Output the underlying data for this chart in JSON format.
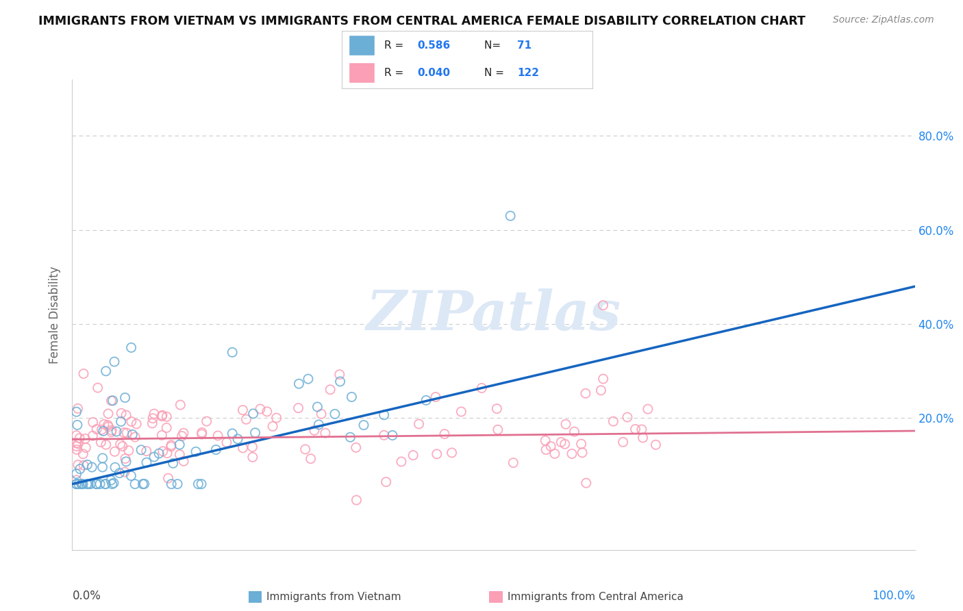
{
  "title": "IMMIGRANTS FROM VIETNAM VS IMMIGRANTS FROM CENTRAL AMERICA FEMALE DISABILITY CORRELATION CHART",
  "source": "Source: ZipAtlas.com",
  "ylabel": "Female Disability",
  "xlim": [
    0.0,
    1.0
  ],
  "ylim": [
    -0.08,
    0.92
  ],
  "yticks": [
    0.0,
    0.2,
    0.4,
    0.6,
    0.8
  ],
  "right_ytick_labels": [
    "",
    "20.0%",
    "40.0%",
    "60.0%",
    "80.0%"
  ],
  "color_vietnam": "#6baed6",
  "color_central": "#fa9fb5",
  "color_blue_line": "#1565c0",
  "color_pink_line": "#e07090",
  "color_dashed_line": "#aaaaaa",
  "background": "#ffffff",
  "grid_color": "#cccccc",
  "watermark_color": "#dce8f5",
  "viet_slope": 0.42,
  "viet_intercept": 0.06,
  "central_slope": 0.018,
  "central_intercept": 0.155,
  "legend_text_color": "#1565c0",
  "legend_label_color": "#333333"
}
